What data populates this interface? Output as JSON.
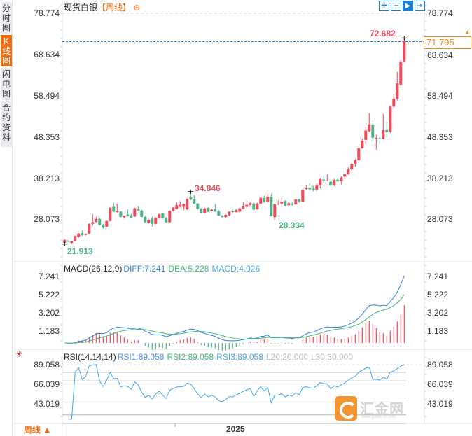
{
  "sidebar": {
    "tabs": [
      {
        "label": "分时图",
        "active": false
      },
      {
        "label": "K线图",
        "active": true
      },
      {
        "label": "闪电图",
        "active": false
      },
      {
        "label": "合约资料",
        "active": false
      }
    ]
  },
  "header": {
    "instrument": "现货白银",
    "period": "【周线】",
    "add_icon": "circle-plus-icon"
  },
  "toolbar": {
    "buttons": [
      {
        "icon": "crosshair-icon",
        "glyph": "✛",
        "active": false
      },
      {
        "icon": "range-icon",
        "glyph": "⊢",
        "active": false
      },
      {
        "icon": "play-forward-icon",
        "glyph": "▶",
        "active": true
      },
      {
        "icon": "scroll-end-icon",
        "glyph": "⇥",
        "active": false
      }
    ]
  },
  "colors": {
    "up": "#ee4b5a",
    "down": "#4db583",
    "diff": "#2f7fe6",
    "dea": "#3dbb78",
    "rsi": "#3ea6e8",
    "accent": "#f26b0f",
    "current_price_line": "#1a7fd4"
  },
  "current_price": "71.795",
  "annotations": {
    "high_all": "72.682",
    "mid_high": "34.846",
    "low_all": "21.913",
    "mid_low": "28.334"
  },
  "price_axis": {
    "ticks": [
      "78.774",
      "68.634",
      "58.494",
      "48.353",
      "38.213",
      "28.073"
    ]
  },
  "macd_panel": {
    "title": "MACD(26,12,9)",
    "diff": "DIFF:7.241",
    "dea": "DEA:5.228",
    "macd": "MACD:4.026",
    "ticks": [
      "7.241",
      "5.222",
      "3.202",
      "1.183"
    ]
  },
  "rsi_panel": {
    "icon": "sun-settings-icon",
    "title": "RSI(14,14,14)",
    "rsi1": "RSI1:89.058",
    "rsi2": "RSI2:89.058",
    "rsi3": "RSI3:89.058",
    "l20": "L20:20.000",
    "l30": "L30:30.000",
    "ticks": [
      "89.058",
      "66.039",
      "43.019"
    ],
    "levels": [
      80,
      70,
      50,
      30,
      20
    ]
  },
  "footer": {
    "period_button": "周线 ▲",
    "year_label": "2025"
  },
  "watermark": {
    "text": "汇金网",
    "url": "www.gold678.com"
  },
  "chart_data": {
    "type": "candlestick",
    "title": "现货白银【周线】",
    "interval": "weekly",
    "ylim": [
      18,
      78.774
    ],
    "x_tick_labels": [
      "2025"
    ],
    "ohlc_fields": [
      "open",
      "high",
      "low",
      "close"
    ],
    "ohlc": [
      [
        22.2,
        23.1,
        21.913,
        22.9
      ],
      [
        22.7,
        22.9,
        22.4,
        22.5
      ],
      [
        22.2,
        22.7,
        22.0,
        22.6
      ],
      [
        22.7,
        24.0,
        22.6,
        23.9
      ],
      [
        23.7,
        24.6,
        23.5,
        24.5
      ],
      [
        24.6,
        25.3,
        23.9,
        24.1
      ],
      [
        24.2,
        24.5,
        24.0,
        24.4
      ],
      [
        24.5,
        27.0,
        24.4,
        26.9
      ],
      [
        26.9,
        29.3,
        26.5,
        27.3
      ],
      [
        27.4,
        28.6,
        27.2,
        28.1
      ],
      [
        28.1,
        28.3,
        26.5,
        26.6
      ],
      [
        26.6,
        26.9,
        25.7,
        26.0
      ],
      [
        26.2,
        27.7,
        26.1,
        27.6
      ],
      [
        27.6,
        31.0,
        27.5,
        30.9
      ],
      [
        31.1,
        32.0,
        29.8,
        29.9
      ],
      [
        29.8,
        31.9,
        29.7,
        30.1
      ],
      [
        29.9,
        30.0,
        28.5,
        28.6
      ],
      [
        28.5,
        29.0,
        28.2,
        28.9
      ],
      [
        29.2,
        30.5,
        28.7,
        28.8
      ],
      [
        29.0,
        29.3,
        28.2,
        28.3
      ],
      [
        28.7,
        30.9,
        28.6,
        30.7
      ],
      [
        30.5,
        31.3,
        30.1,
        30.2
      ],
      [
        30.2,
        30.4,
        28.5,
        28.6
      ],
      [
        28.6,
        28.9,
        27.1,
        27.3
      ],
      [
        27.2,
        28.0,
        27.0,
        27.9
      ],
      [
        28.2,
        28.6,
        26.2,
        26.9
      ],
      [
        26.9,
        28.5,
        26.8,
        28.4
      ],
      [
        28.3,
        29.4,
        28.2,
        29.3
      ],
      [
        29.5,
        29.6,
        28.2,
        28.3
      ],
      [
        28.3,
        28.6,
        27.1,
        27.3
      ],
      [
        27.3,
        30.2,
        27.2,
        30.1
      ],
      [
        30.1,
        31.0,
        29.9,
        30.9
      ],
      [
        30.6,
        32.3,
        30.4,
        31.5
      ],
      [
        31.1,
        32.5,
        30.9,
        31.6
      ],
      [
        31.1,
        31.9,
        30.2,
        31.8
      ],
      [
        30.5,
        33.2,
        30.3,
        33.1
      ],
      [
        33.4,
        34.846,
        32.7,
        32.9
      ],
      [
        32.9,
        34.0,
        31.8,
        31.9
      ],
      [
        31.9,
        32.0,
        30.4,
        30.6
      ],
      [
        30.6,
        30.8,
        29.5,
        29.6
      ],
      [
        29.6,
        30.8,
        29.5,
        30.7
      ],
      [
        30.8,
        31.0,
        29.8,
        29.9
      ],
      [
        30.0,
        30.6,
        29.9,
        30.4
      ],
      [
        30.6,
        31.8,
        29.8,
        29.9
      ],
      [
        30.0,
        30.3,
        28.8,
        28.9
      ],
      [
        28.9,
        29.1,
        28.4,
        28.6
      ],
      [
        28.6,
        29.3,
        28.3,
        29.1
      ],
      [
        29.0,
        30.0,
        28.9,
        29.9
      ],
      [
        30.1,
        30.4,
        29.6,
        29.8
      ],
      [
        29.8,
        30.5,
        29.7,
        30.3
      ],
      [
        29.9,
        30.9,
        29.8,
        30.7
      ],
      [
        30.6,
        32.3,
        30.5,
        31.2
      ],
      [
        31.1,
        32.6,
        31.0,
        31.6
      ],
      [
        31.5,
        32.3,
        31.4,
        32.0
      ],
      [
        31.9,
        32.2,
        30.2,
        30.4
      ],
      [
        30.5,
        32.1,
        30.4,
        31.9
      ],
      [
        31.9,
        33.6,
        31.8,
        33.3
      ],
      [
        33.3,
        33.8,
        32.1,
        32.3
      ],
      [
        32.3,
        34.3,
        32.2,
        33.6
      ],
      [
        33.6,
        34.3,
        28.8,
        28.9
      ],
      [
        28.6,
        31.9,
        28.334,
        31.8
      ],
      [
        31.7,
        32.7,
        31.5,
        31.9
      ],
      [
        31.9,
        33.3,
        31.7,
        32.4
      ],
      [
        32.5,
        32.7,
        31.2,
        31.3
      ],
      [
        31.5,
        32.3,
        31.4,
        32.0
      ],
      [
        31.8,
        32.4,
        31.3,
        31.6
      ],
      [
        31.7,
        33.0,
        31.6,
        32.9
      ],
      [
        32.9,
        33.1,
        32.1,
        32.3
      ],
      [
        32.4,
        35.6,
        32.3,
        35.3
      ],
      [
        35.5,
        36.5,
        35.2,
        35.7
      ],
      [
        35.8,
        36.9,
        35.1,
        35.4
      ],
      [
        35.6,
        36.3,
        34.9,
        35.3
      ],
      [
        35.3,
        36.8,
        35.0,
        36.4
      ],
      [
        36.4,
        38.1,
        35.7,
        37.9
      ],
      [
        37.8,
        38.8,
        37.1,
        37.6
      ],
      [
        37.5,
        39.1,
        37.4,
        37.6
      ],
      [
        37.3,
        37.8,
        35.9,
        36.4
      ],
      [
        36.5,
        38.0,
        36.2,
        37.7
      ],
      [
        37.8,
        38.3,
        37.2,
        37.4
      ],
      [
        37.4,
        38.6,
        36.6,
        38.3
      ],
      [
        38.5,
        39.3,
        38.0,
        39.1
      ],
      [
        39.1,
        40.8,
        39.0,
        40.3
      ],
      [
        40.3,
        41.8,
        40.0,
        41.7
      ],
      [
        41.7,
        42.9,
        41.0,
        42.6
      ],
      [
        42.6,
        45.8,
        42.5,
        45.5
      ],
      [
        45.5,
        47.9,
        45.4,
        47.4
      ],
      [
        47.6,
        50.8,
        46.6,
        49.9
      ],
      [
        49.7,
        54.2,
        49.5,
        51.4
      ],
      [
        51.4,
        52.4,
        47.1,
        48.1
      ],
      [
        47.8,
        48.9,
        45.2,
        48.1
      ],
      [
        48.0,
        48.7,
        46.6,
        47.9
      ],
      [
        47.8,
        54.0,
        47.7,
        50.0
      ],
      [
        50.0,
        52.0,
        48.3,
        49.5
      ],
      [
        49.6,
        56.0,
        49.3,
        55.8
      ],
      [
        55.8,
        58.9,
        55.6,
        57.7
      ],
      [
        57.7,
        64.3,
        57.3,
        61.5
      ],
      [
        61.2,
        67.2,
        60.9,
        66.7
      ],
      [
        66.9,
        72.682,
        66.8,
        71.795
      ]
    ],
    "indicators": {
      "macd": {
        "params": [
          26,
          12,
          9
        ],
        "diff": 7.241,
        "dea": 5.228,
        "macd": 4.026,
        "ylim": [
          -0.6,
          7.241
        ]
      },
      "rsi": {
        "params": [
          14,
          14,
          14
        ],
        "rsi1": 89.058,
        "rsi2": 89.058,
        "rsi3": 89.058,
        "ylim": [
          18,
          89.058
        ]
      }
    }
  }
}
